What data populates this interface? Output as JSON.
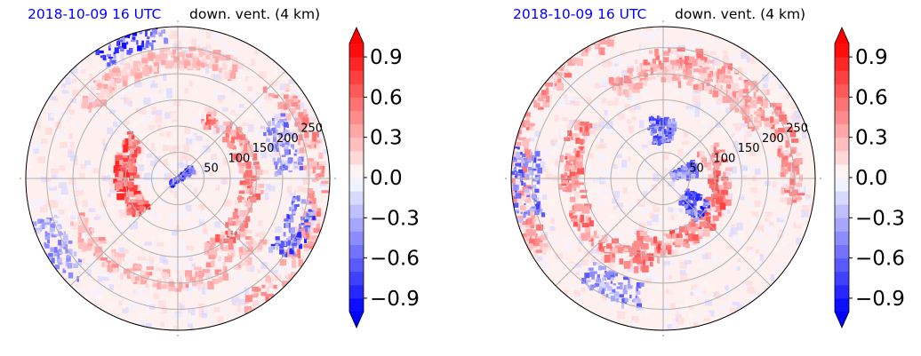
{
  "panels": [
    {
      "time_label": "2018-10-09 16 UTC",
      "variable_label": "down. vent. (4 km)"
    },
    {
      "time_label": "2018-10-09 16 UTC",
      "variable_label": "down. vent. (4 km)"
    }
  ],
  "chart_data": [
    {
      "type": "heatmap",
      "projection": "polar",
      "title_left": "2018-10-09 16 UTC",
      "title_right": "down. vent. (4 km)",
      "radial_ticks": [
        "50",
        "100",
        "150",
        "200",
        "250"
      ],
      "radial_tick_values": [
        50,
        100,
        150,
        200,
        250
      ],
      "colorbar": {
        "ticks": [
          0.9,
          0.6,
          0.3,
          0.0,
          -0.3,
          -0.6,
          -0.9
        ],
        "tick_labels": [
          "0.9",
          "0.6",
          "0.3",
          "0.0",
          "−0.3",
          "−0.6",
          "−0.9"
        ],
        "range": [
          -1.0,
          1.0
        ],
        "extend": "both",
        "colormap": "bwr"
      },
      "colors": {
        "positive": "#ff0000",
        "negative": "#0000ff",
        "zero": "#ffffff"
      },
      "grid": true
    },
    {
      "type": "heatmap",
      "projection": "polar",
      "title_left": "2018-10-09 16 UTC",
      "title_right": "down. vent. (4 km)",
      "radial_ticks": [
        "50",
        "100",
        "150",
        "200",
        "250"
      ],
      "radial_tick_values": [
        50,
        100,
        150,
        200,
        250
      ],
      "colorbar": {
        "ticks": [
          0.9,
          0.6,
          0.3,
          0.0,
          -0.3,
          -0.6,
          -0.9
        ],
        "tick_labels": [
          "0.9",
          "0.6",
          "0.3",
          "0.0",
          "−0.3",
          "−0.6",
          "−0.9"
        ],
        "range": [
          -1.0,
          1.0
        ],
        "extend": "both",
        "colormap": "bwr"
      },
      "colors": {
        "positive": "#ff0000",
        "negative": "#0000ff",
        "zero": "#ffffff"
      },
      "grid": true
    }
  ]
}
